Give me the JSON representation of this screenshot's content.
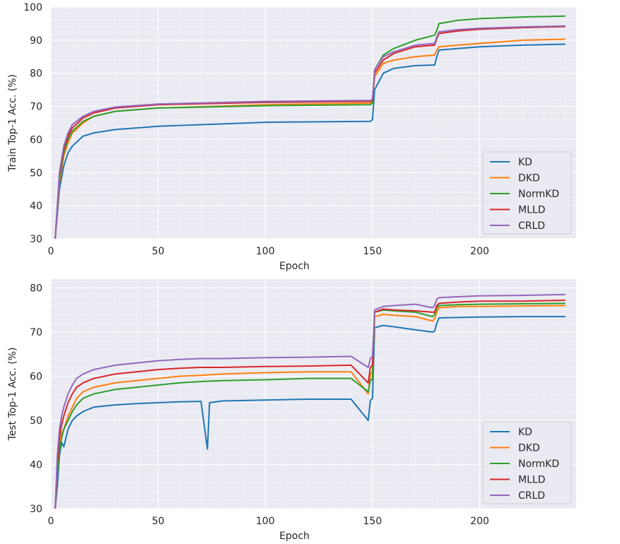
{
  "chart_data": [
    {
      "type": "line",
      "xlabel": "Epoch",
      "ylabel": "Train Top-1 Acc. (%)",
      "xlim": [
        0,
        245
      ],
      "ylim": [
        30,
        100
      ],
      "xticks": [
        0,
        50,
        100,
        150,
        200
      ],
      "yticks": [
        30,
        40,
        50,
        60,
        70,
        80,
        90,
        100
      ],
      "grid": true,
      "legend_position": "bottom-right",
      "series": [
        {
          "name": "KD",
          "color": "#1f77b4",
          "x": [
            2,
            4,
            6,
            8,
            10,
            15,
            20,
            30,
            50,
            100,
            149,
            150,
            151,
            155,
            160,
            170,
            179,
            180,
            181,
            190,
            200,
            220,
            240
          ],
          "y": [
            30,
            45,
            52,
            56,
            58,
            61,
            62,
            63,
            64,
            65.2,
            65.5,
            66,
            75,
            80,
            81.5,
            82.3,
            82.5,
            85,
            87,
            87.5,
            88,
            88.5,
            88.8
          ]
        },
        {
          "name": "DKD",
          "color": "#ff7f0e",
          "x": [
            2,
            4,
            6,
            8,
            10,
            15,
            20,
            30,
            50,
            100,
            149,
            150,
            151,
            155,
            160,
            170,
            179,
            180,
            181,
            190,
            200,
            220,
            240
          ],
          "y": [
            30,
            47,
            55,
            59,
            62,
            65,
            67,
            68.5,
            69.5,
            70.5,
            71,
            71.5,
            79,
            83,
            84,
            85,
            85.5,
            87,
            88,
            88.5,
            89,
            90,
            90.3
          ]
        },
        {
          "name": "NormKD",
          "color": "#2ca02c",
          "x": [
            2,
            4,
            6,
            8,
            10,
            15,
            20,
            30,
            50,
            100,
            149,
            150,
            151,
            155,
            160,
            170,
            179,
            180,
            181,
            190,
            200,
            220,
            240
          ],
          "y": [
            30,
            48,
            56,
            60,
            62.5,
            65.5,
            67,
            68.5,
            69.5,
            70.2,
            70.5,
            71,
            81,
            85.5,
            87.5,
            90,
            91.5,
            93,
            95,
            96,
            96.5,
            97,
            97.3
          ]
        },
        {
          "name": "MLLD",
          "color": "#d62728",
          "x": [
            2,
            4,
            6,
            8,
            10,
            15,
            20,
            30,
            50,
            100,
            149,
            150,
            151,
            155,
            160,
            170,
            179,
            180,
            181,
            190,
            200,
            220,
            240
          ],
          "y": [
            30,
            49,
            57,
            61,
            63.5,
            66.5,
            68,
            69.5,
            70.5,
            71.2,
            71.5,
            72,
            80,
            84,
            86,
            88,
            88.5,
            90.5,
            92,
            92.8,
            93.3,
            93.8,
            94.1
          ]
        },
        {
          "name": "CRLD",
          "color": "#9467bd",
          "x": [
            2,
            4,
            6,
            8,
            10,
            15,
            20,
            30,
            50,
            100,
            149,
            150,
            151,
            155,
            160,
            170,
            179,
            180,
            181,
            190,
            200,
            220,
            240
          ],
          "y": [
            30,
            50,
            58,
            62,
            64.5,
            67,
            68.5,
            69.8,
            70.7,
            71.5,
            71.8,
            72.2,
            81,
            85,
            86.5,
            88.5,
            89,
            91,
            92.5,
            93.2,
            93.6,
            94,
            94.3
          ]
        }
      ]
    },
    {
      "type": "line",
      "xlabel": "Epoch",
      "ylabel": "Test Top-1 Acc. (%)",
      "xlim": [
        0,
        245
      ],
      "ylim": [
        30,
        82
      ],
      "xticks": [
        0,
        50,
        100,
        150,
        200
      ],
      "yticks": [
        30,
        40,
        50,
        60,
        70,
        80
      ],
      "grid": true,
      "legend_position": "bottom-right",
      "series": [
        {
          "name": "KD",
          "color": "#1f77b4",
          "x": [
            2,
            3,
            4,
            5,
            6,
            8,
            10,
            12,
            15,
            20,
            30,
            40,
            50,
            60,
            70,
            73,
            74,
            80,
            100,
            120,
            140,
            148,
            149,
            150,
            151,
            155,
            160,
            170,
            178,
            179,
            180,
            181,
            190,
            200,
            220,
            240
          ],
          "y": [
            30,
            35,
            42,
            45,
            44,
            48,
            50,
            51,
            52,
            53,
            53.5,
            53.8,
            54,
            54.2,
            54.3,
            43.5,
            54,
            54.4,
            54.6,
            54.8,
            54.8,
            50,
            54.5,
            55,
            71,
            71.5,
            71.2,
            70.5,
            70,
            70.2,
            72,
            73.2,
            73.3,
            73.4,
            73.5,
            73.5
          ]
        },
        {
          "name": "DKD",
          "color": "#ff7f0e",
          "x": [
            2,
            3,
            4,
            5,
            6,
            8,
            10,
            12,
            15,
            20,
            30,
            40,
            50,
            60,
            70,
            80,
            100,
            120,
            140,
            148,
            149,
            150,
            151,
            155,
            160,
            170,
            178,
            179,
            180,
            181,
            190,
            200,
            220,
            240
          ],
          "y": [
            30,
            38,
            44,
            47,
            48,
            51,
            53,
            55,
            56.5,
            57.5,
            58.5,
            59,
            59.5,
            60,
            60.2,
            60.5,
            60.8,
            61,
            61,
            56,
            60.5,
            61,
            73.5,
            74,
            73.8,
            73.5,
            72.5,
            73,
            74.5,
            75.5,
            75.8,
            75.8,
            75.9,
            76
          ]
        },
        {
          "name": "NormKD",
          "color": "#2ca02c",
          "x": [
            2,
            3,
            4,
            5,
            6,
            8,
            10,
            12,
            15,
            20,
            30,
            40,
            50,
            60,
            70,
            80,
            100,
            120,
            140,
            148,
            149,
            150,
            151,
            155,
            160,
            170,
            178,
            179,
            180,
            181,
            190,
            200,
            220,
            240
          ],
          "y": [
            30,
            38,
            43,
            46,
            48,
            50,
            52,
            53.5,
            55,
            56,
            57,
            57.5,
            58,
            58.5,
            58.8,
            59,
            59.2,
            59.5,
            59.5,
            56.5,
            59,
            59.5,
            74.5,
            75,
            74.8,
            74.5,
            73.5,
            74,
            75.5,
            76,
            76.2,
            76.3,
            76.4,
            76.5
          ]
        },
        {
          "name": "MLLD",
          "color": "#d62728",
          "x": [
            2,
            3,
            4,
            5,
            6,
            8,
            10,
            12,
            15,
            20,
            30,
            40,
            50,
            60,
            70,
            80,
            100,
            120,
            140,
            148,
            149,
            150,
            151,
            155,
            160,
            170,
            178,
            179,
            180,
            181,
            190,
            200,
            220,
            240
          ],
          "y": [
            30,
            40,
            46,
            49,
            51,
            54,
            56,
            57.5,
            58.5,
            59.5,
            60.5,
            61,
            61.5,
            61.8,
            62,
            62,
            62.2,
            62.3,
            62.5,
            58.5,
            62,
            62.5,
            74.5,
            75.2,
            75,
            74.8,
            74.5,
            74.5,
            76,
            76.5,
            76.8,
            77,
            77,
            77.2
          ]
        },
        {
          "name": "CRLD",
          "color": "#9467bd",
          "x": [
            2,
            3,
            4,
            5,
            6,
            8,
            10,
            12,
            15,
            20,
            30,
            40,
            50,
            60,
            70,
            80,
            100,
            120,
            140,
            148,
            149,
            150,
            151,
            155,
            160,
            170,
            178,
            179,
            180,
            181,
            190,
            200,
            220,
            240
          ],
          "y": [
            30,
            42,
            48,
            51,
            53,
            56,
            58,
            59.5,
            60.5,
            61.5,
            62.5,
            63,
            63.5,
            63.8,
            64,
            64,
            64.2,
            64.3,
            64.5,
            62,
            64,
            64.5,
            75,
            75.8,
            76,
            76.3,
            75.5,
            76,
            77.5,
            77.8,
            78,
            78.2,
            78.3,
            78.5
          ]
        }
      ]
    }
  ]
}
